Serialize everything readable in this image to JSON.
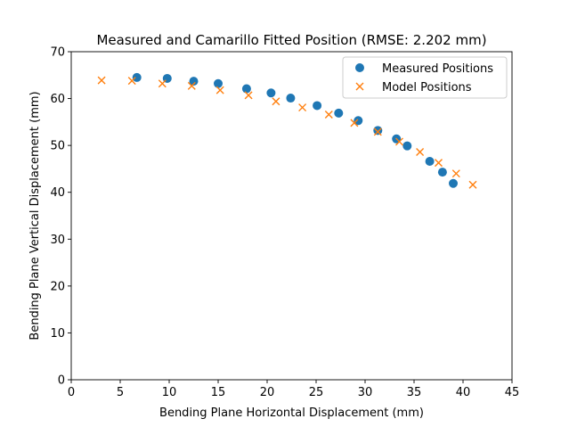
{
  "chart_data": {
    "type": "scatter",
    "title": "Measured and Camarillo Fitted Position (RMSE: 2.202 mm)",
    "xlabel": "Bending Plane Horizontal Displacement (mm)",
    "ylabel": "Bending Plane Vertical Displacement (mm)",
    "xlim": [
      0,
      45
    ],
    "ylim": [
      0,
      70
    ],
    "xticks": [
      0,
      5,
      10,
      15,
      20,
      25,
      30,
      35,
      40,
      45
    ],
    "yticks": [
      0,
      10,
      20,
      30,
      40,
      50,
      60,
      70
    ],
    "grid": false,
    "legend_position": "top-right",
    "series": [
      {
        "name": "Measured Positions",
        "marker": "circle",
        "color": "#1f77b4",
        "x": [
          6.7,
          9.8,
          12.5,
          15.0,
          17.9,
          20.4,
          22.4,
          25.1,
          27.3,
          29.3,
          31.3,
          33.2,
          34.3,
          36.6,
          37.9,
          39.0
        ],
        "y": [
          64.5,
          64.3,
          63.7,
          63.2,
          62.1,
          61.2,
          60.1,
          58.5,
          56.9,
          55.3,
          53.2,
          51.4,
          49.9,
          46.6,
          44.3,
          41.9
        ]
      },
      {
        "name": "Model Positions",
        "marker": "x",
        "color": "#ff7f0e",
        "x": [
          3.1,
          6.2,
          9.3,
          12.3,
          15.2,
          18.1,
          20.9,
          23.6,
          26.3,
          28.9,
          31.3,
          33.5,
          35.6,
          37.5,
          39.3,
          41.0
        ],
        "y": [
          63.9,
          63.8,
          63.2,
          62.7,
          61.8,
          60.7,
          59.4,
          58.1,
          56.6,
          54.8,
          52.9,
          50.8,
          48.6,
          46.3,
          44.0,
          41.6
        ]
      }
    ]
  }
}
